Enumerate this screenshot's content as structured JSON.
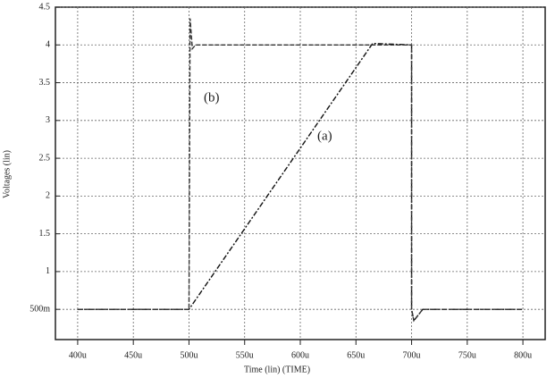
{
  "chart_data": {
    "type": "line",
    "xlabel": "Time (lin) (TIME)",
    "ylabel": "Voltages (lin)",
    "xlim": [
      380,
      820
    ],
    "ylim": [
      0.1,
      4.5
    ],
    "xticks": [
      {
        "value": 400,
        "label": "400u"
      },
      {
        "value": 450,
        "label": "450u"
      },
      {
        "value": 500,
        "label": "500u"
      },
      {
        "value": 550,
        "label": "550u"
      },
      {
        "value": 600,
        "label": "600u"
      },
      {
        "value": 650,
        "label": "650u"
      },
      {
        "value": 700,
        "label": "700u"
      },
      {
        "value": 750,
        "label": "750u"
      },
      {
        "value": 800,
        "label": "800u"
      }
    ],
    "yticks": [
      {
        "value": 0.5,
        "label": "500m"
      },
      1,
      1.5,
      2,
      2.5,
      3,
      3.5,
      4,
      4.5
    ],
    "grid": true,
    "series": [
      {
        "name": "(a)",
        "color": "#111111",
        "x": [
          400,
          500,
          665,
          700,
          700,
          702,
          710,
          800
        ],
        "values": [
          0.5,
          0.5,
          4.02,
          4.0,
          0.5,
          0.35,
          0.5,
          0.5
        ]
      },
      {
        "name": "(b)",
        "color": "#333333",
        "x": [
          400,
          500,
          501,
          503,
          506,
          700,
          700,
          702,
          710,
          800
        ],
        "values": [
          0.5,
          0.5,
          4.35,
          3.95,
          4.0,
          4.0,
          0.5,
          0.35,
          0.5,
          0.5
        ]
      }
    ]
  }
}
